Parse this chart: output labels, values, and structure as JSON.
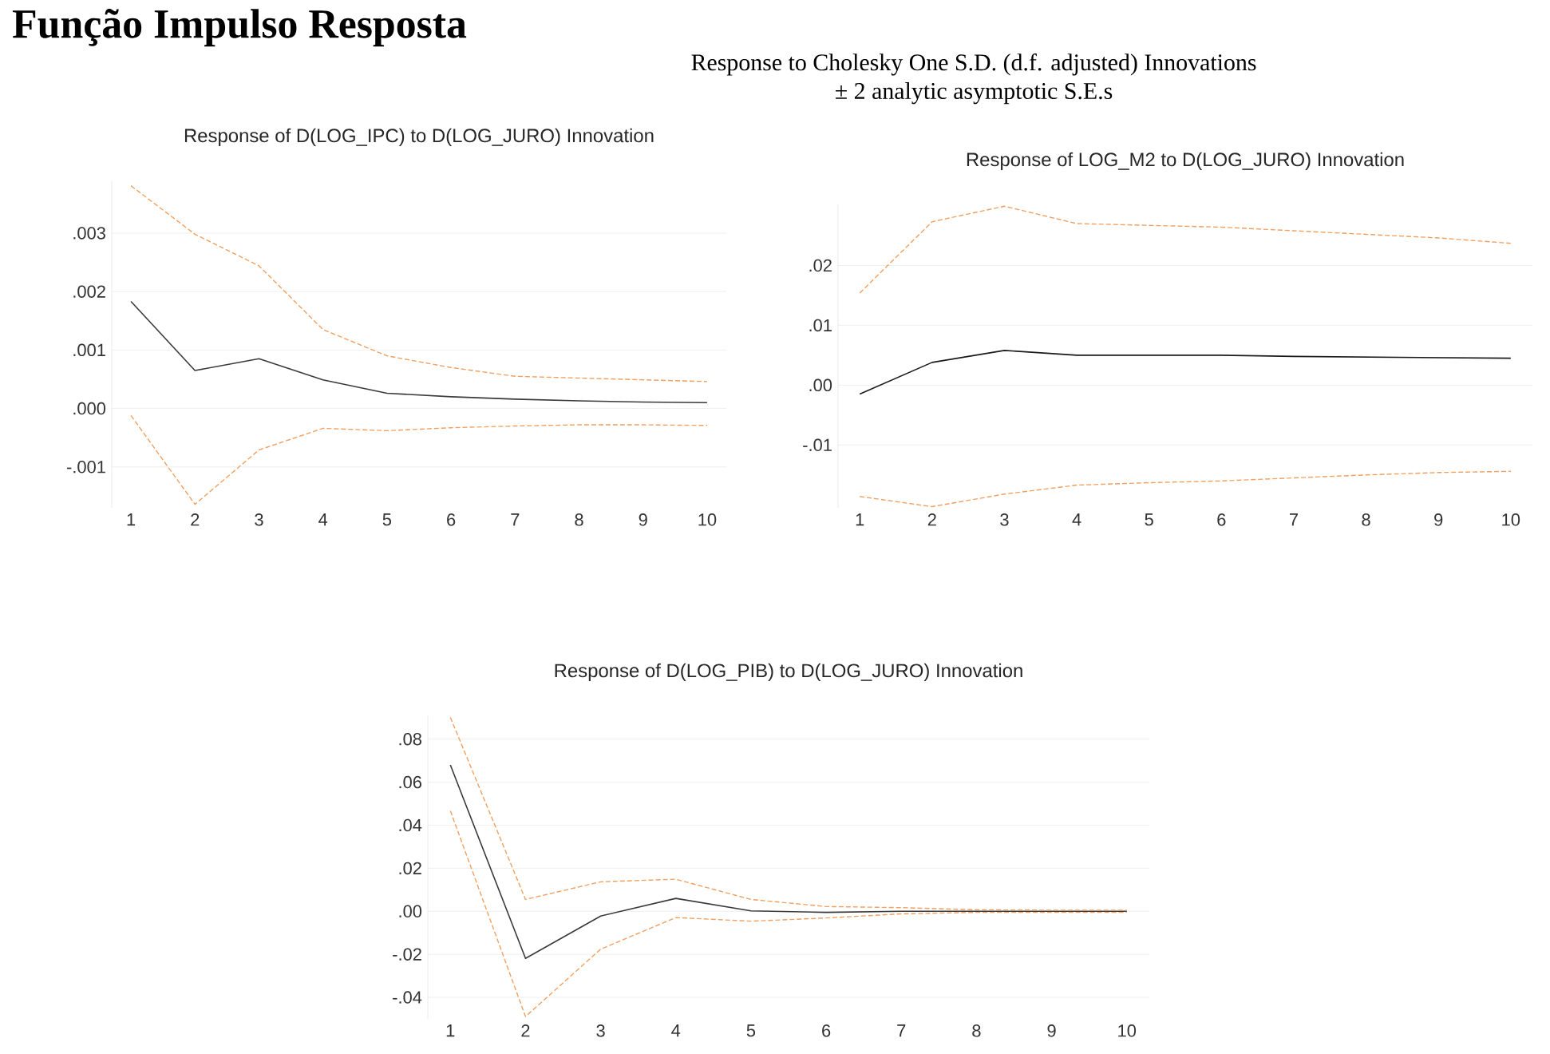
{
  "chart_data": [
    {
      "type": "other",
      "title": "Função Impulso Resposta",
      "subtitle": "Response to Cholesky One S.D. (d.f. adjusted) Innovations",
      "annotations": [
        "± 2 analytic asymptotic S.E.s"
      ]
    },
    {
      "type": "line",
      "title": "Response of D(LOG_IPC) to D(LOG_JURO) Innovation",
      "x": [
        1,
        2,
        3,
        4,
        5,
        6,
        7,
        8,
        9,
        10
      ],
      "xlim": [
        0.7,
        10.3
      ],
      "xticks": [
        1,
        2,
        3,
        4,
        5,
        6,
        7,
        8,
        9,
        10
      ],
      "ylim": [
        -0.0017,
        0.0039
      ],
      "yticks": [
        {
          "value": -0.001,
          "label": "-.001"
        },
        {
          "value": 0,
          "label": ".000"
        },
        {
          "value": 0.001,
          "label": ".001"
        },
        {
          "value": 0.002,
          "label": ".002"
        },
        {
          "value": 0.003,
          "label": ".003"
        }
      ],
      "grid": "y",
      "series": [
        {
          "color": "#3a3a3a",
          "line_style": "solid",
          "values": [
            0.00183,
            0.00065,
            0.00085,
            0.00049,
            0.00026,
            0.0002,
            0.00016,
            0.00013,
            0.00011,
            0.0001
          ]
        },
        {
          "color": "#f0a060",
          "line_style": "dashed",
          "values": [
            0.00381,
            0.00298,
            0.00244,
            0.00135,
            0.0009,
            0.0007,
            0.00055,
            0.00052,
            0.00049,
            0.00046
          ]
        },
        {
          "color": "#f0a060",
          "line_style": "dashed",
          "values": [
            -0.00012,
            -0.00164,
            -0.00071,
            -0.00034,
            -0.00038,
            -0.00033,
            -0.0003,
            -0.00028,
            -0.00028,
            -0.00029
          ]
        }
      ]
    },
    {
      "type": "line",
      "title": "Response of LOG_M2 to D(LOG_JURO) Innovation",
      "x": [
        1,
        2,
        3,
        4,
        5,
        6,
        7,
        8,
        9,
        10
      ],
      "xlim": [
        0.7,
        10.3
      ],
      "xticks": [
        1,
        2,
        3,
        4,
        5,
        6,
        7,
        8,
        9,
        10
      ],
      "ylim": [
        -0.0205,
        0.0302
      ],
      "yticks": [
        {
          "value": -0.01,
          "label": "-.01"
        },
        {
          "value": 0,
          "label": ".00"
        },
        {
          "value": 0.01,
          "label": ".01"
        },
        {
          "value": 0.02,
          "label": ".02"
        }
      ],
      "grid": "y",
      "series": [
        {
          "color": "#1a1a1a",
          "line_style": "solid",
          "values": [
            -0.0015,
            0.0038,
            0.0058,
            0.005,
            0.005,
            0.005,
            0.0048,
            0.0047,
            0.0046,
            0.0045
          ]
        },
        {
          "color": "#f0a060",
          "line_style": "dashed",
          "values": [
            0.0154,
            0.0273,
            0.0299,
            0.027,
            0.0267,
            0.0264,
            0.0258,
            0.0252,
            0.0246,
            0.0237
          ]
        },
        {
          "color": "#f0a060",
          "line_style": "dashed",
          "values": [
            -0.0186,
            -0.0203,
            -0.0182,
            -0.0167,
            -0.0163,
            -0.016,
            -0.0155,
            -0.015,
            -0.0146,
            -0.0144
          ]
        }
      ]
    },
    {
      "type": "line",
      "title": "Response of D(LOG_PIB) to D(LOG_JURO) Innovation",
      "x": [
        1,
        2,
        3,
        4,
        5,
        6,
        7,
        8,
        9,
        10
      ],
      "xlim": [
        0.7,
        10.3
      ],
      "xticks": [
        1,
        2,
        3,
        4,
        5,
        6,
        7,
        8,
        9,
        10
      ],
      "ylim": [
        -0.05,
        0.091
      ],
      "yticks": [
        {
          "value": -0.04,
          "label": "-.04"
        },
        {
          "value": -0.02,
          "label": "-.02"
        },
        {
          "value": 0,
          "label": ".00"
        },
        {
          "value": 0.02,
          "label": ".02"
        },
        {
          "value": 0.04,
          "label": ".04"
        },
        {
          "value": 0.06,
          "label": ".06"
        },
        {
          "value": 0.08,
          "label": ".08"
        }
      ],
      "grid": "y",
      "series": [
        {
          "color": "#3a3a3a",
          "line_style": "solid",
          "values": [
            0.068,
            -0.0219,
            -0.0022,
            0.006,
            0.0002,
            -0.0005,
            0,
            0,
            0,
            0
          ]
        },
        {
          "color": "#f0a060",
          "line_style": "dashed",
          "values": [
            0.0901,
            0.0055,
            0.0137,
            0.0149,
            0.0055,
            0.0022,
            0.0017,
            0.0007,
            0.0005,
            0.0005
          ]
        },
        {
          "color": "#f0a060",
          "line_style": "dashed",
          "values": [
            0.0467,
            -0.0489,
            -0.0176,
            -0.0029,
            -0.0046,
            -0.0031,
            -0.0012,
            -0.0005,
            -0.0005,
            -0.0005
          ]
        }
      ]
    }
  ]
}
